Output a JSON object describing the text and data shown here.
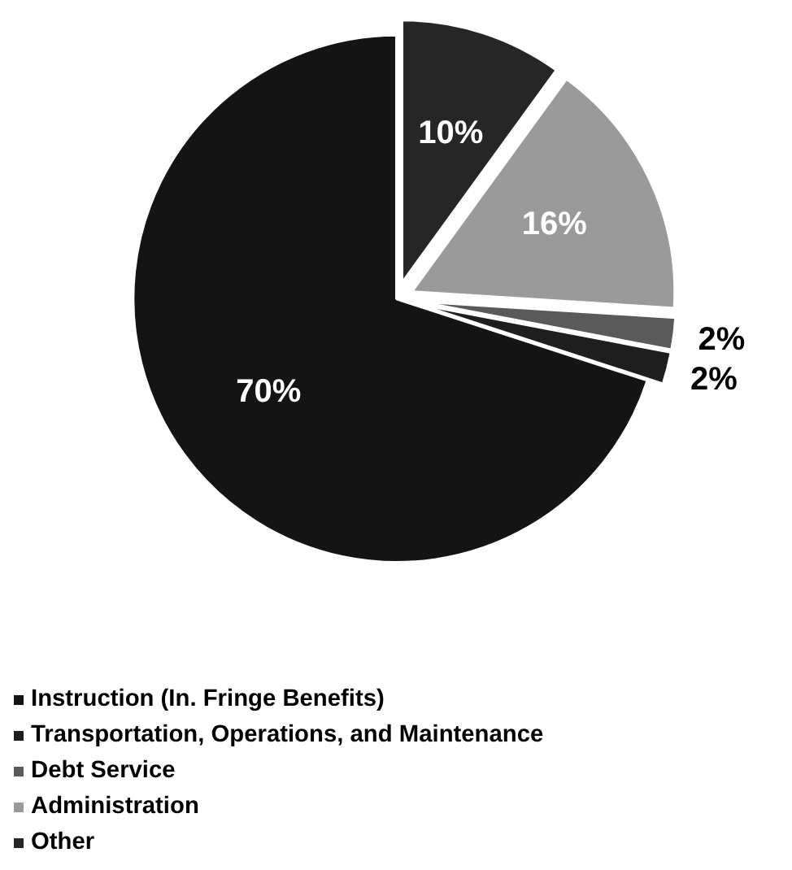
{
  "chart_data": {
    "type": "pie",
    "categories": [
      "Instruction (In. Fringe Benefits)",
      "Transportation, Operations, and Maintenance",
      "Debt Service",
      "Administration",
      "Other"
    ],
    "values": [
      70,
      2,
      2,
      16,
      10
    ],
    "colors": [
      "#141414",
      "#1e1e1e",
      "#5a5a5a",
      "#9a9a9a",
      "#262626"
    ],
    "value_labels": [
      "70%",
      "2%",
      "2%",
      "16%",
      "10%"
    ],
    "legend": "bottom"
  }
}
